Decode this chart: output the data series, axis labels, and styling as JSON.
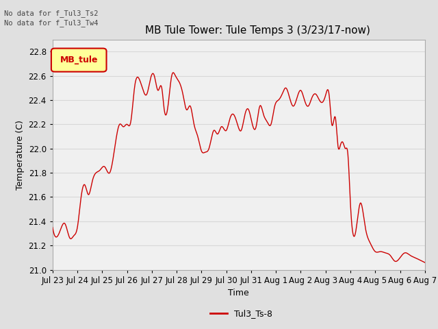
{
  "title": "MB Tule Tower: Tule Temps 3 (3/23/17-now)",
  "xlabel": "Time",
  "ylabel": "Temperature (C)",
  "ylim": [
    21.0,
    22.9
  ],
  "yticks": [
    21.0,
    21.2,
    21.4,
    21.6,
    21.8,
    22.0,
    22.2,
    22.4,
    22.6,
    22.8
  ],
  "xtick_labels": [
    "Jul 23",
    "Jul 24",
    "Jul 25",
    "Jul 26",
    "Jul 27",
    "Jul 28",
    "Jul 29",
    "Jul 30",
    "Jul 31",
    "Aug 1",
    "Aug 2",
    "Aug 3",
    "Aug 4",
    "Aug 5",
    "Aug 6",
    "Aug 7"
  ],
  "no_data_texts": [
    "No data for f_Tul3_Ts2",
    "No data for f_Tul3_Tw4"
  ],
  "legend_box_label": "MB_tule",
  "legend_box_color": "#ffff99",
  "legend_box_border": "#cc0000",
  "line_color": "#cc0000",
  "line_label": "Tul3_Ts-8",
  "background_color": "#e0e0e0",
  "plot_bg_color": "#f0f0f0",
  "grid_color": "#d8d8d8",
  "title_fontsize": 11,
  "axis_label_fontsize": 9,
  "tick_fontsize": 8.5,
  "figwidth": 6.4,
  "figheight": 4.8,
  "dpi": 100
}
